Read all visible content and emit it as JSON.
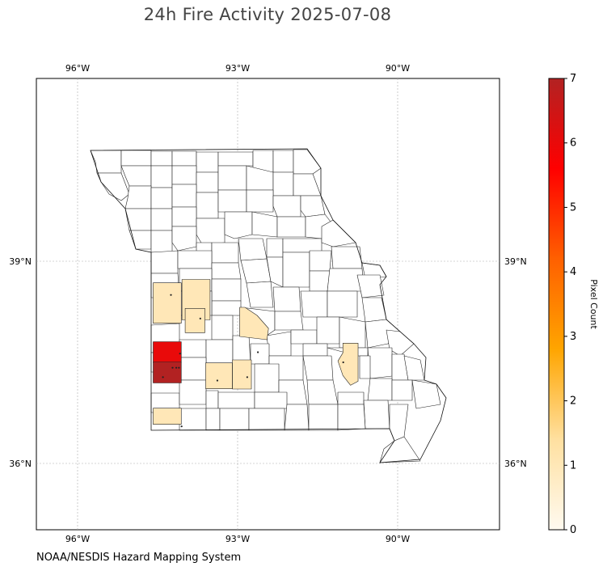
{
  "title": "24h Fire Activity 2025-07-08",
  "source": "NOAA/NESDIS Hazard Mapping System",
  "axes": {
    "lon_labels": [
      "96°W",
      "93°W",
      "90°W"
    ],
    "lat_labels": [
      "39°N",
      "36°N"
    ]
  },
  "colorbar": {
    "label": "Pixel Count",
    "ticks": [
      "0",
      "1",
      "2",
      "3",
      "4",
      "5",
      "6",
      "7"
    ],
    "min": 0,
    "max": 7,
    "colors": [
      "#fffaf0",
      "#ffe0a0",
      "#ffa500",
      "#ff6000",
      "#ff0000",
      "#b22222"
    ]
  },
  "chart_data": {
    "type": "heatmap",
    "title": "24h Fire Activity 2025-07-08",
    "extent": {
      "lon": [
        -96.75,
        -88.0
      ],
      "lat": [
        34.9,
        41.6
      ]
    },
    "grid": true,
    "colorbar_label": "Pixel Count",
    "cmin": 0,
    "cmax": 7,
    "counties": [
      {
        "lon": -94.32,
        "lat": 38.38,
        "count": 1
      },
      {
        "lon": -93.78,
        "lat": 38.43,
        "count": 1
      },
      {
        "lon": -93.72,
        "lat": 38.12,
        "count": 1
      },
      {
        "lon": -92.72,
        "lat": 38.1,
        "count": 1
      },
      {
        "lon": -94.32,
        "lat": 37.65,
        "count": 6
      },
      {
        "lon": -94.32,
        "lat": 37.35,
        "count": 7
      },
      {
        "lon": -93.35,
        "lat": 37.3,
        "count": 1
      },
      {
        "lon": -92.92,
        "lat": 37.32,
        "count": 1
      },
      {
        "lon": -90.92,
        "lat": 37.52,
        "count": 1
      },
      {
        "lon": -94.32,
        "lat": 36.7,
        "count": 1
      }
    ],
    "fire_points": [
      {
        "lon": -94.25,
        "lat": 38.5
      },
      {
        "lon": -93.7,
        "lat": 38.15
      },
      {
        "lon": -92.62,
        "lat": 37.65
      },
      {
        "lon": -94.08,
        "lat": 37.63
      },
      {
        "lon": -94.15,
        "lat": 37.42
      },
      {
        "lon": -94.22,
        "lat": 37.42
      },
      {
        "lon": -94.1,
        "lat": 37.42
      },
      {
        "lon": -94.4,
        "lat": 37.28
      },
      {
        "lon": -93.38,
        "lat": 37.23
      },
      {
        "lon": -92.82,
        "lat": 37.28
      },
      {
        "lon": -91.02,
        "lat": 37.5
      },
      {
        "lon": -94.05,
        "lat": 36.55
      }
    ]
  }
}
